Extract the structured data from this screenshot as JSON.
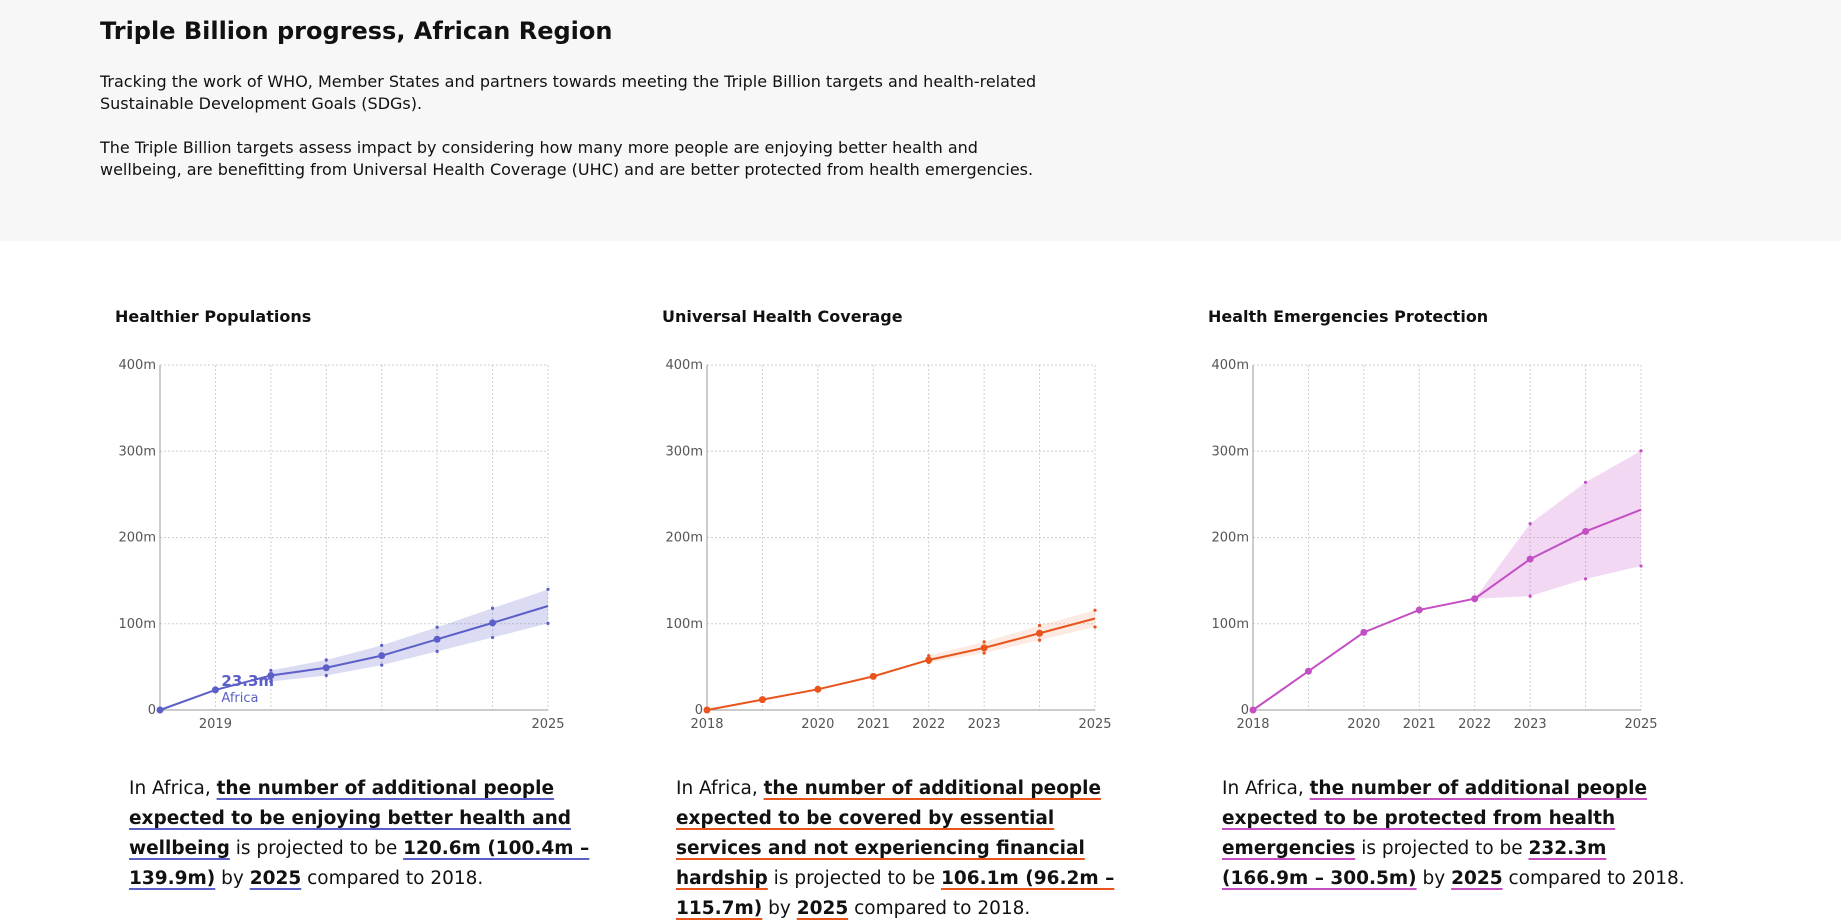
{
  "header": {
    "title": "Triple Billion progress, African Region",
    "para1": "Tracking the work of WHO, Member States and partners towards meeting the Triple Billion targets and health-related Sustainable Development Goals (SDGs).",
    "para2": "The Triple Billion targets assess impact by considering how many more people are enjoying better health and wellbeing, are benefitting from Universal Health Coverage (UHC) and are better protected from health emergencies."
  },
  "panels": [
    {
      "title": "Healthier Populations",
      "summary": {
        "prefix": "In Africa, ",
        "metric": "the number of additional people expected to be enjoying better health and wellbeing",
        "mid1": " is projected to be ",
        "value": "120.6m (100.4m – 139.9m)",
        "mid2": " by ",
        "year": "2025",
        "suffix": " compared to 2018."
      }
    },
    {
      "title": "Universal Health Coverage",
      "summary": {
        "prefix": "In Africa, ",
        "metric": "the number of additional people expected to be covered by essential services and not experiencing financial hardship",
        "mid1": " is projected to be ",
        "value": "106.1m (96.2m – 115.7m)",
        "mid2": " by ",
        "year": "2025",
        "suffix": " compared to 2018."
      }
    },
    {
      "title": "Health Emergencies Protection",
      "summary": {
        "prefix": "In Africa, ",
        "metric": "the number of additional people expected to be protected from health emergencies",
        "mid1": " is projected to be ",
        "value": "232.3m (166.9m – 300.5m)",
        "mid2": " by ",
        "year": "2025",
        "suffix": " compared to 2018."
      }
    }
  ],
  "chart_data": [
    {
      "type": "line",
      "title": "Healthier Populations",
      "color": "#5b5fc7",
      "band_color": "#5b5fc7",
      "x": [
        2018,
        2019,
        2020,
        2021,
        2022,
        2023,
        2024,
        2025
      ],
      "xticks": [
        "2019",
        "2025"
      ],
      "xlim": [
        2018,
        2025
      ],
      "yticks": [
        "0",
        "100m",
        "200m",
        "300m",
        "400m"
      ],
      "ylim": [
        0,
        400
      ],
      "grid": true,
      "series": [
        {
          "values": [
            0,
            23.3,
            40,
            49,
            63,
            82,
            101,
            120.6
          ]
        }
      ],
      "band": {
        "start_index": 2,
        "lower": [
          33,
          40,
          52,
          68,
          84,
          100.4
        ],
        "upper": [
          46,
          58,
          75,
          96,
          118,
          139.9
        ]
      },
      "annotation": {
        "value_label": "23.3m",
        "series_label": "Africa"
      }
    },
    {
      "type": "line",
      "title": "Universal Health Coverage",
      "color": "#e8541c",
      "band_color": "#f4a07c",
      "x": [
        2018,
        2019,
        2020,
        2021,
        2022,
        2023,
        2024,
        2025
      ],
      "xticks": [
        "2018",
        "2020",
        "2021",
        "2022",
        "2023",
        "2025"
      ],
      "xlim": [
        2018,
        2025
      ],
      "yticks": [
        "0",
        "100m",
        "200m",
        "300m",
        "400m"
      ],
      "ylim": [
        0,
        400
      ],
      "grid": true,
      "series": [
        {
          "values": [
            0,
            12,
            24,
            39,
            58,
            72,
            89,
            106.1
          ]
        }
      ],
      "band": {
        "start_index": 4,
        "lower": [
          55,
          66,
          81,
          96.2
        ],
        "upper": [
          63,
          79,
          98,
          115.7
        ]
      }
    },
    {
      "type": "line",
      "title": "Health Emergencies Protection",
      "color": "#c44fc4",
      "band_color": "#c44fc4",
      "x": [
        2018,
        2019,
        2020,
        2021,
        2022,
        2023,
        2024,
        2025
      ],
      "xticks": [
        "2018",
        "2020",
        "2021",
        "2022",
        "2023",
        "2025"
      ],
      "xlim": [
        2018,
        2025
      ],
      "yticks": [
        "0",
        "100m",
        "200m",
        "300m",
        "400m"
      ],
      "ylim": [
        0,
        400
      ],
      "grid": true,
      "series": [
        {
          "values": [
            0,
            45,
            90,
            116,
            129,
            175,
            207,
            232.3
          ]
        }
      ],
      "band": {
        "start_index": 4,
        "lower": [
          129,
          132,
          152,
          166.9
        ],
        "upper": [
          129,
          216,
          264,
          300.5
        ]
      }
    }
  ]
}
